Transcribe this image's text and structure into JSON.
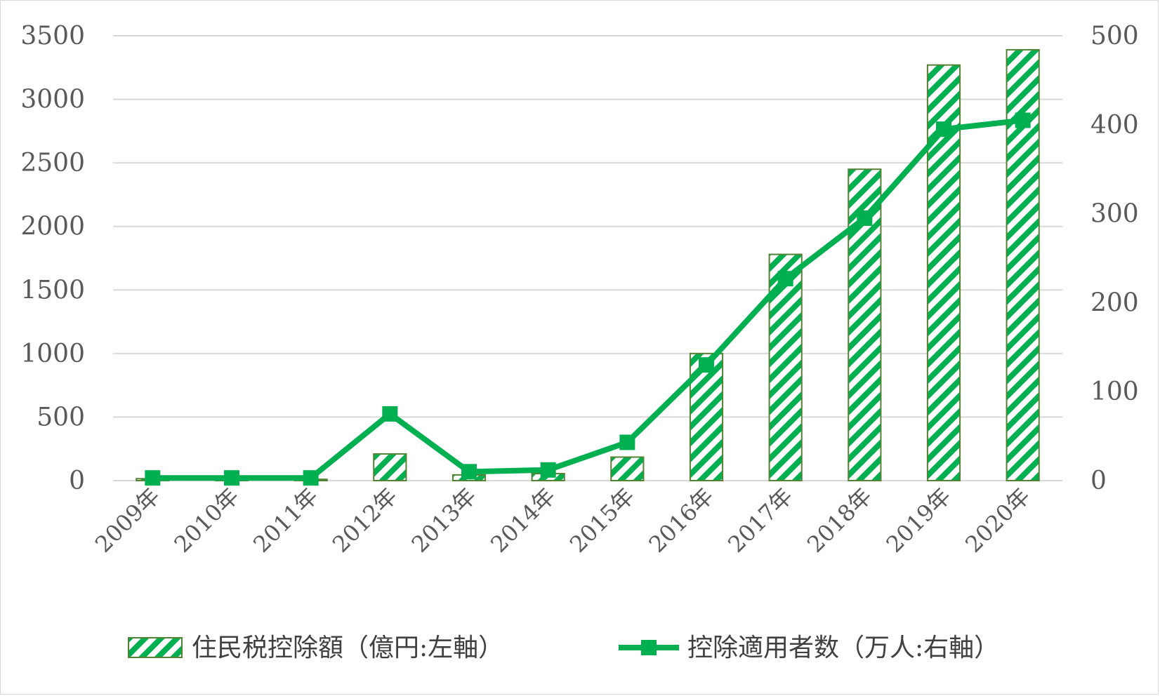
{
  "chart_data": {
    "type": "bar",
    "categories": [
      "2009年",
      "2010年",
      "2011年",
      "2012年",
      "2013年",
      "2014年",
      "2015年",
      "2016年",
      "2017年",
      "2018年",
      "2019年",
      "2020年"
    ],
    "series": [
      {
        "name": "住民税控除額（億円:左軸）",
        "type": "bar",
        "axis": "left",
        "values": [
          15,
          12,
          10,
          210,
          45,
          55,
          185,
          1000,
          1780,
          2450,
          3270,
          3390
        ]
      },
      {
        "name": "控除適用者数（万人:右軸）",
        "type": "line",
        "axis": "right",
        "values": [
          3,
          3,
          3,
          75,
          10,
          12,
          43,
          130,
          227,
          295,
          395,
          405
        ]
      }
    ],
    "ylim_left": [
      0,
      3500
    ],
    "ylim_right": [
      0,
      500
    ],
    "yticks_left": [
      "0",
      "500",
      "1000",
      "1500",
      "2000",
      "2500",
      "3000",
      "3500"
    ],
    "yticks_right": [
      "0",
      "100",
      "200",
      "300",
      "400",
      "500"
    ],
    "grid": true,
    "legend_position": "bottom",
    "colors": {
      "bar_stroke": "#548235",
      "bar_hatch": "#00b050",
      "line": "#00b050",
      "grid": "#d9d9d9",
      "axis_text": "#595959"
    }
  }
}
